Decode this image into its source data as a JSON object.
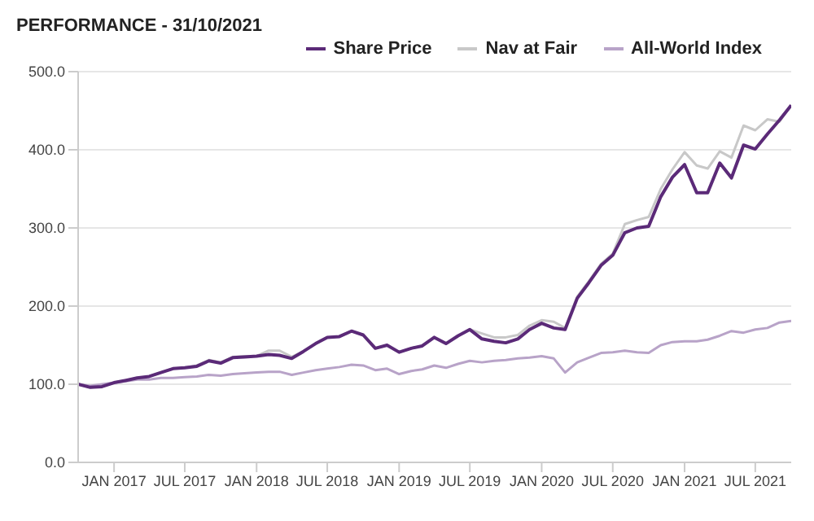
{
  "chart_data": {
    "type": "line",
    "title": "PERFORMANCE - 31/10/2021",
    "x": [
      "2016-10",
      "2016-11",
      "2016-12",
      "2017-01",
      "2017-02",
      "2017-03",
      "2017-04",
      "2017-05",
      "2017-06",
      "2017-07",
      "2017-08",
      "2017-09",
      "2017-10",
      "2017-11",
      "2017-12",
      "2018-01",
      "2018-02",
      "2018-03",
      "2018-04",
      "2018-05",
      "2018-06",
      "2018-07",
      "2018-08",
      "2018-09",
      "2018-10",
      "2018-11",
      "2018-12",
      "2019-01",
      "2019-02",
      "2019-03",
      "2019-04",
      "2019-05",
      "2019-06",
      "2019-07",
      "2019-08",
      "2019-09",
      "2019-10",
      "2019-11",
      "2019-12",
      "2020-01",
      "2020-02",
      "2020-03",
      "2020-04",
      "2020-05",
      "2020-06",
      "2020-07",
      "2020-08",
      "2020-09",
      "2020-10",
      "2020-11",
      "2020-12",
      "2021-01",
      "2021-02",
      "2021-03",
      "2021-04",
      "2021-05",
      "2021-06",
      "2021-07",
      "2021-08",
      "2021-09",
      "2021-10"
    ],
    "series": [
      {
        "name": "Share Price",
        "color": "#5b2a78",
        "values": [
          100,
          96,
          97,
          102,
          105,
          108,
          110,
          115,
          120,
          121,
          123,
          130,
          127,
          134,
          135,
          136,
          138,
          137,
          133,
          142,
          152,
          160,
          161,
          168,
          163,
          146,
          150,
          141,
          146,
          149,
          160,
          152,
          162,
          170,
          158,
          155,
          153,
          158,
          170,
          178,
          172,
          170,
          210,
          230,
          252,
          265,
          294,
          300,
          302,
          340,
          365,
          381,
          345,
          345,
          383,
          364,
          406,
          401,
          420,
          438,
          457
        ]
      },
      {
        "name": "Nav at Fair",
        "color": "#c8c8c8",
        "values": [
          100,
          96,
          97,
          102,
          105,
          108,
          110,
          115,
          120,
          121,
          124,
          131,
          128,
          135,
          136,
          136,
          143,
          143,
          135,
          142,
          152,
          160,
          161,
          168,
          163,
          146,
          150,
          141,
          146,
          149,
          160,
          152,
          162,
          170,
          165,
          160,
          160,
          163,
          175,
          182,
          180,
          172,
          212,
          232,
          254,
          267,
          305,
          310,
          314,
          350,
          375,
          397,
          380,
          376,
          398,
          390,
          431,
          425,
          439,
          436,
          457
        ]
      },
      {
        "name": "All-World Index",
        "color": "#b8a3c8",
        "values": [
          100,
          98,
          100,
          102,
          104,
          106,
          106,
          108,
          108,
          109,
          110,
          112,
          111,
          113,
          114,
          115,
          116,
          116,
          112,
          115,
          118,
          120,
          122,
          125,
          124,
          118,
          120,
          113,
          117,
          119,
          124,
          121,
          126,
          130,
          128,
          130,
          131,
          133,
          134,
          136,
          133,
          115,
          128,
          134,
          140,
          141,
          143,
          141,
          140,
          150,
          154,
          155,
          155,
          157,
          162,
          168,
          166,
          170,
          172,
          179,
          181
        ]
      }
    ],
    "xlim": [
      "2016-10",
      "2021-10"
    ],
    "xticks": [
      {
        "value": "2017-01",
        "label": "JAN 2017"
      },
      {
        "value": "2017-07",
        "label": "JUL 2017"
      },
      {
        "value": "2018-01",
        "label": "JAN 2018"
      },
      {
        "value": "2018-07",
        "label": "JUL 2018"
      },
      {
        "value": "2019-01",
        "label": "JAN 2019"
      },
      {
        "value": "2019-07",
        "label": "JUL 2019"
      },
      {
        "value": "2020-01",
        "label": "JAN 2020"
      },
      {
        "value": "2020-07",
        "label": "JUL 2020"
      },
      {
        "value": "2021-01",
        "label": "JAN 2021"
      },
      {
        "value": "2021-07",
        "label": "JUL 2021"
      }
    ],
    "ylim": [
      0,
      500
    ],
    "yticks": [
      {
        "value": 0,
        "label": "0.0"
      },
      {
        "value": 100,
        "label": "100.0"
      },
      {
        "value": 200,
        "label": "200.0"
      },
      {
        "value": 300,
        "label": "300.0"
      },
      {
        "value": 400,
        "label": "400.0"
      },
      {
        "value": 500,
        "label": "500.0"
      }
    ],
    "grid": "y",
    "legend": "top right",
    "marker": "none",
    "line_style": "solid"
  }
}
